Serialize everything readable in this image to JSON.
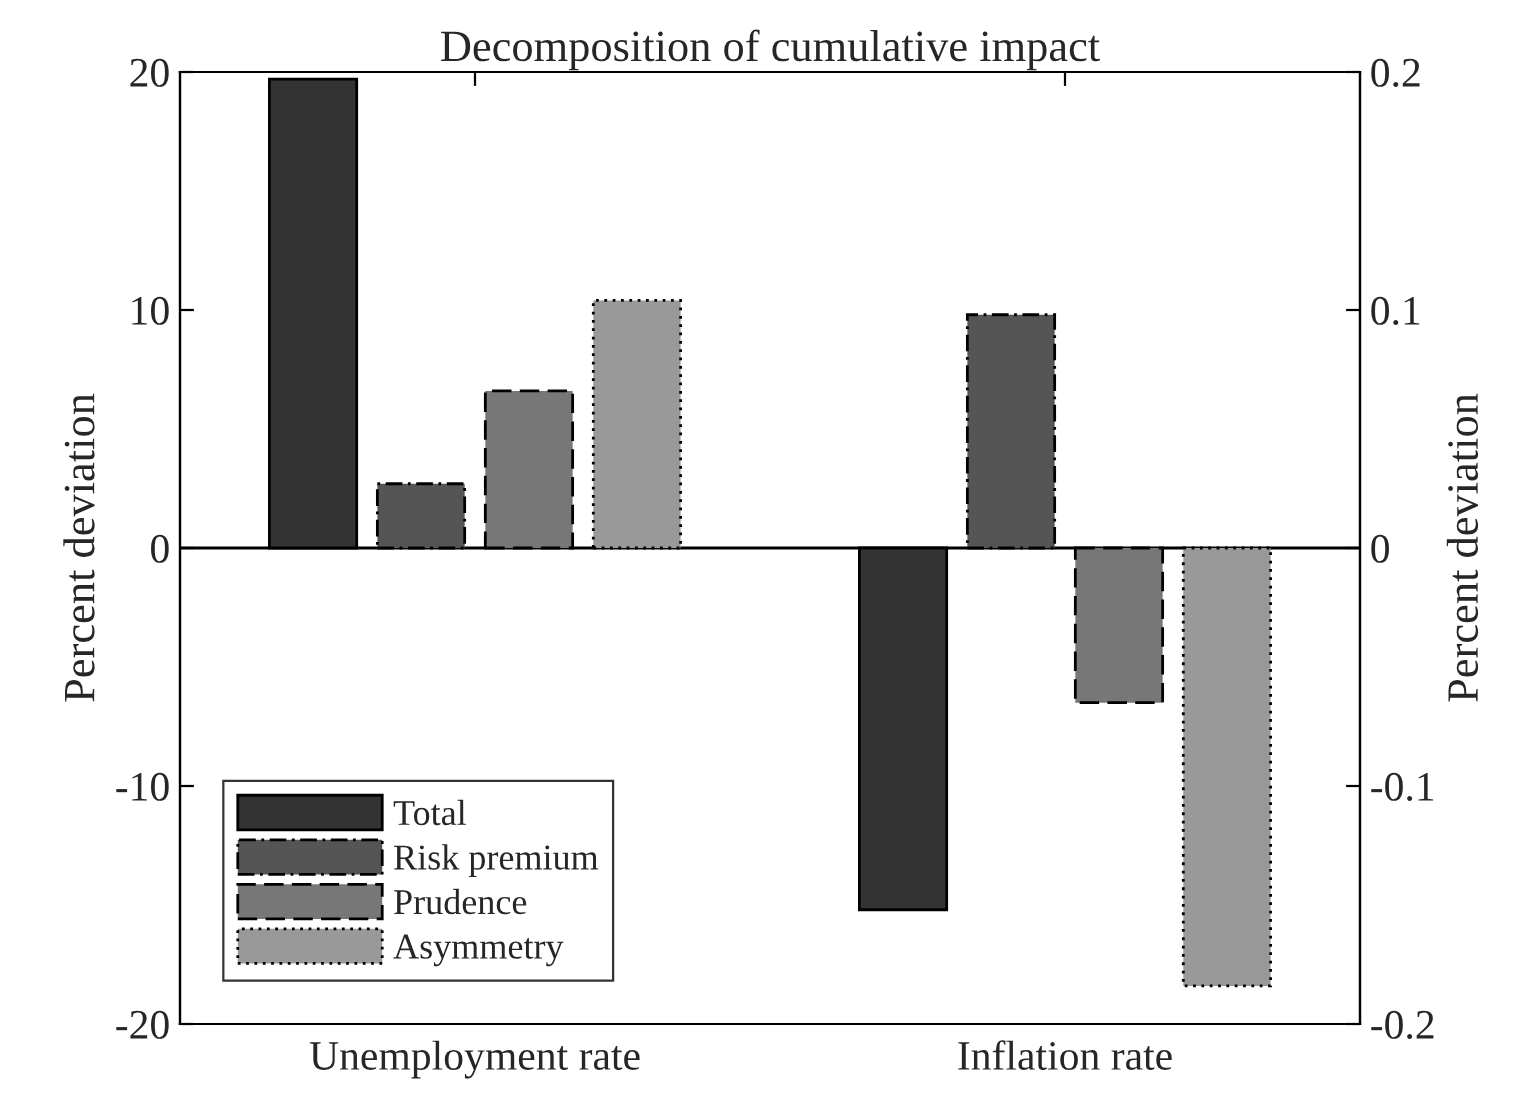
{
  "chart_data": {
    "type": "bar",
    "title": "Decomposition of cumulative impact",
    "ylabel": "Percent deviation",
    "y2label": "Percent deviation",
    "categories": [
      "Unemployment rate",
      "Inflation rate"
    ],
    "series": [
      {
        "name": "Total",
        "color": "#333333",
        "line_style": "solid",
        "values": [
          19.7,
          null
        ]
      },
      {
        "name": "Risk premium",
        "color": "#555555",
        "line_style": "dashdot",
        "values": [
          2.7,
          null
        ]
      },
      {
        "name": "Prudence",
        "color": "#777777",
        "line_style": "dashed",
        "values": [
          6.6,
          null
        ]
      },
      {
        "name": "Asymmetry",
        "color": "#999999",
        "line_style": "dotted",
        "values": [
          10.4,
          null
        ]
      },
      {
        "color": "#333333",
        "line_style": "solid",
        "axis": "y2",
        "values": [
          null,
          -0.152
        ]
      },
      {
        "color": "#555555",
        "line_style": "dashdot",
        "axis": "y2",
        "values": [
          null,
          0.098
        ]
      },
      {
        "color": "#777777",
        "line_style": "dashed",
        "axis": "y2",
        "values": [
          null,
          -0.065
        ]
      },
      {
        "color": "#999999",
        "line_style": "dotted",
        "axis": "y2",
        "values": [
          null,
          -0.184
        ]
      }
    ],
    "ylim": [
      -20,
      20
    ],
    "yticks": [
      -20,
      -10,
      0,
      10,
      20
    ],
    "y2lim": [
      -0.2,
      0.2
    ],
    "y2ticks": [
      -0.2,
      -0.1,
      0,
      0.1,
      0.2
    ],
    "ref_lines": [
      {
        "axis": "y",
        "value": 0,
        "color": "#000000"
      }
    ],
    "legend": "bottom left",
    "grid": false
  }
}
